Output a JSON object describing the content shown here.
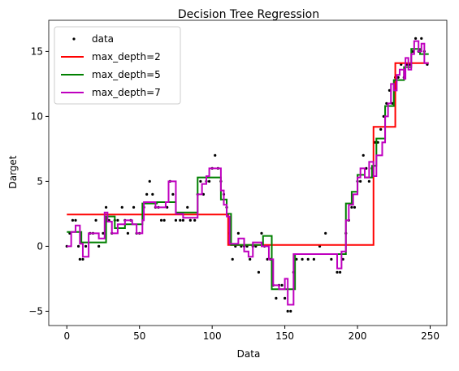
{
  "chart_data": {
    "type": "step",
    "title": "Decision Tree Regression",
    "x_label": "Data",
    "y_label": "Darget",
    "xlim": [
      -12.45,
      261.45
    ],
    "ylim": [
      -6.1,
      17.4
    ],
    "xticks": [
      0,
      50,
      100,
      150,
      200,
      250
    ],
    "yticks": [
      {
        "value": -5,
        "label": "−5"
      },
      0,
      5,
      10,
      15
    ],
    "legend": "upper left",
    "series": [
      {
        "name": "data",
        "type": "scatter",
        "color": "#000000",
        "x": [
          0,
          2,
          4,
          6,
          8,
          9,
          11,
          13,
          16,
          18,
          20,
          22,
          25,
          27,
          29,
          31,
          33,
          35,
          38,
          40,
          42,
          44,
          46,
          48,
          50,
          53,
          55,
          57,
          59,
          61,
          63,
          65,
          67,
          69,
          71,
          73,
          75,
          78,
          80,
          83,
          85,
          88,
          90,
          92,
          94,
          96,
          98,
          100,
          102,
          104,
          106,
          108,
          110,
          112,
          114,
          116,
          118,
          120,
          122,
          124,
          126,
          128,
          130,
          132,
          134,
          136,
          138,
          140,
          142,
          144,
          146,
          148,
          150,
          152,
          154,
          156,
          158,
          162,
          166,
          170,
          174,
          178,
          182,
          186,
          188,
          190,
          192,
          194,
          196,
          198,
          200,
          202,
          204,
          206,
          208,
          210,
          212,
          214,
          216,
          218,
          220,
          222,
          224,
          226,
          228,
          230,
          232,
          234,
          236,
          238,
          240,
          242,
          244,
          246,
          248
        ],
        "values": [
          0,
          1,
          2,
          2,
          0,
          -1,
          -1,
          0,
          1,
          1,
          2,
          0,
          1,
          3,
          2,
          1,
          2,
          2,
          3,
          2,
          1,
          2,
          3,
          1,
          1,
          3,
          4,
          5,
          4,
          3,
          3,
          2,
          2,
          3,
          5,
          4,
          2,
          2,
          2,
          3,
          2,
          2,
          4,
          5,
          4,
          5,
          5,
          6,
          7,
          6,
          5,
          4,
          3,
          1,
          -1,
          0,
          1,
          0,
          0,
          0,
          -1,
          0,
          0,
          -2,
          1,
          0,
          -1,
          -1,
          -3,
          -4,
          -3,
          -3,
          -4,
          -5,
          -5,
          -2,
          -1,
          -1,
          -1,
          -1,
          0,
          1,
          -1,
          -2,
          -2,
          -1,
          1,
          2,
          3,
          3,
          5,
          5,
          7,
          6,
          5,
          6,
          8,
          8,
          9,
          10,
          11,
          12,
          11,
          13,
          13,
          14,
          13,
          14,
          14,
          15,
          16,
          15,
          16,
          15,
          14
        ]
      },
      {
        "name": "max_depth=2",
        "type": "step",
        "color": "#ff0000",
        "x": [
          0,
          111,
          211,
          226,
          249
        ],
        "values": [
          2.45,
          0.1,
          9.2,
          14.1,
          14.1
        ]
      },
      {
        "name": "max_depth=5",
        "type": "step",
        "color": "#008000",
        "x": [
          0,
          10,
          27,
          33,
          40,
          52,
          62,
          75,
          90,
          106,
          110,
          113,
          135,
          141,
          157,
          185,
          192,
          196,
          200,
          205,
          210,
          213,
          219,
          225,
          232,
          237,
          243,
          249
        ],
        "values": [
          1.1,
          0.3,
          2.3,
          1.4,
          1.7,
          3.3,
          3.4,
          2.6,
          5.3,
          3.6,
          2.5,
          0.1,
          0.8,
          -3.3,
          -0.6,
          -0.6,
          3.3,
          4.2,
          5.5,
          5.3,
          6.2,
          8.3,
          10.8,
          12.8,
          13.8,
          15.2,
          14.8,
          14.8
        ]
      },
      {
        "name": "max_depth=7",
        "type": "step",
        "color": "#bf00bf",
        "x": [
          0,
          3,
          6,
          9,
          11,
          15,
          22,
          26,
          28,
          31,
          35,
          40,
          45,
          48,
          52,
          53,
          61,
          68,
          70,
          75,
          80,
          90,
          93,
          96,
          98,
          106,
          108,
          110,
          112,
          118,
          122,
          125,
          128,
          134,
          139,
          142,
          146,
          150,
          152,
          156,
          186,
          189,
          192,
          194,
          197,
          200,
          202,
          205,
          208,
          211,
          213,
          217,
          219,
          221,
          223,
          225,
          227,
          229,
          232,
          233,
          235,
          237,
          239,
          242,
          244,
          246,
          249
        ],
        "values": [
          0,
          1.1,
          1.6,
          0.2,
          -0.8,
          1,
          0.6,
          2.6,
          1.9,
          1,
          1.7,
          2,
          1.7,
          1,
          2,
          3.4,
          3,
          3.4,
          5,
          2.5,
          2.2,
          4,
          4.8,
          5.4,
          6,
          4.3,
          3.2,
          2.3,
          0.2,
          0.6,
          -0.4,
          -0.8,
          0.3,
          0,
          -1,
          -3,
          -3.3,
          -2.5,
          -4.5,
          -0.6,
          -1.7,
          -0.4,
          2,
          3.2,
          4,
          5.3,
          6,
          5.3,
          6.5,
          5.4,
          7,
          8,
          10,
          11,
          12.5,
          12,
          13.2,
          13.6,
          12.9,
          14.5,
          13.6,
          14.8,
          15.8,
          15,
          15.6,
          14.1,
          14.1
        ]
      }
    ]
  }
}
